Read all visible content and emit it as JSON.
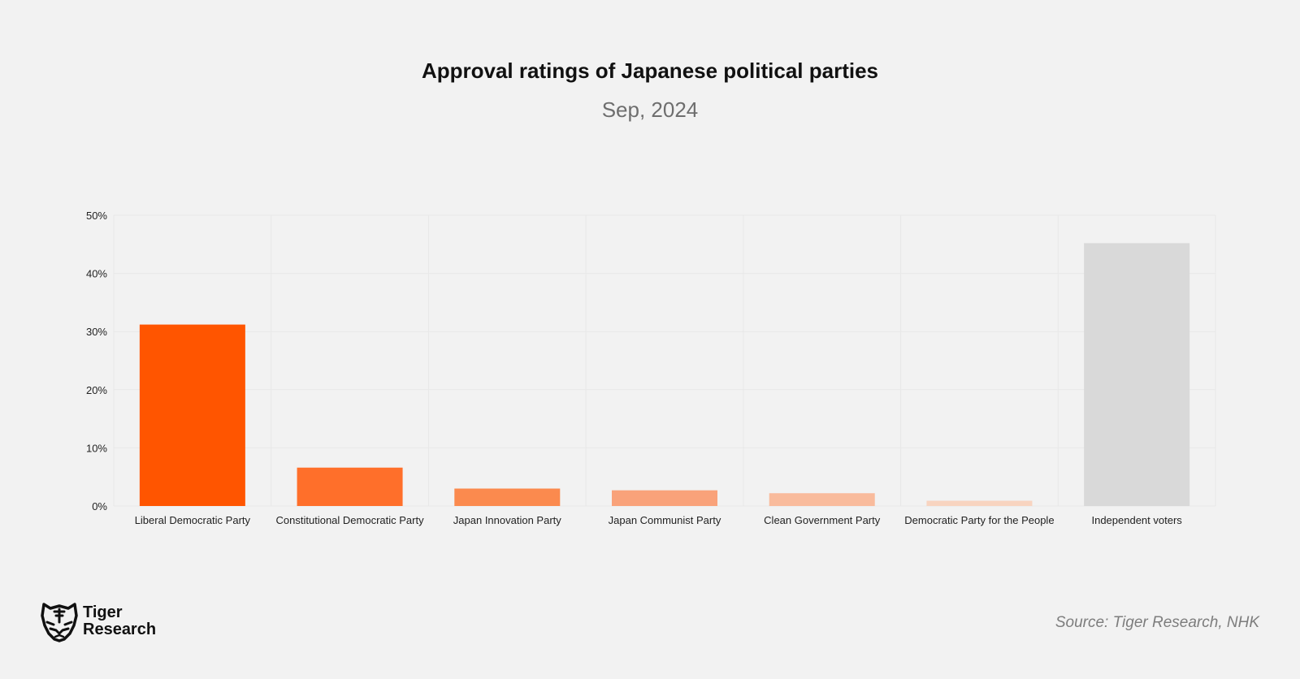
{
  "chart_data": {
    "type": "bar",
    "title": "Approval ratings of Japanese political parties",
    "subtitle": "Sep, 2024",
    "categories": [
      "Liberal Democratic Party",
      "Constitutional Democratic Party",
      "Japan Innovation Party",
      "Japan Communist Party",
      "Clean Government Party",
      "Democratic Party for the People",
      "Independent voters"
    ],
    "values": [
      31.2,
      6.6,
      3.0,
      2.7,
      2.2,
      0.9,
      45.2
    ],
    "colors": [
      "#ff5500",
      "#ff6f2a",
      "#fb8a4e",
      "#f9a27a",
      "#f9bb9c",
      "#f8d4c0",
      "#d9d9d9"
    ],
    "ylim": [
      0,
      50
    ],
    "yticks": [
      0,
      10,
      20,
      30,
      40,
      50
    ],
    "ytick_labels": [
      "0%",
      "10%",
      "20%",
      "30%",
      "40%",
      "50%"
    ],
    "xlabel": "",
    "ylabel": "",
    "grid": true,
    "legend": "none"
  },
  "brand": {
    "line1": "Tiger",
    "line2": "Research",
    "logo_icon": "tiger-head-icon"
  },
  "source": "Source: Tiger Research, NHK"
}
